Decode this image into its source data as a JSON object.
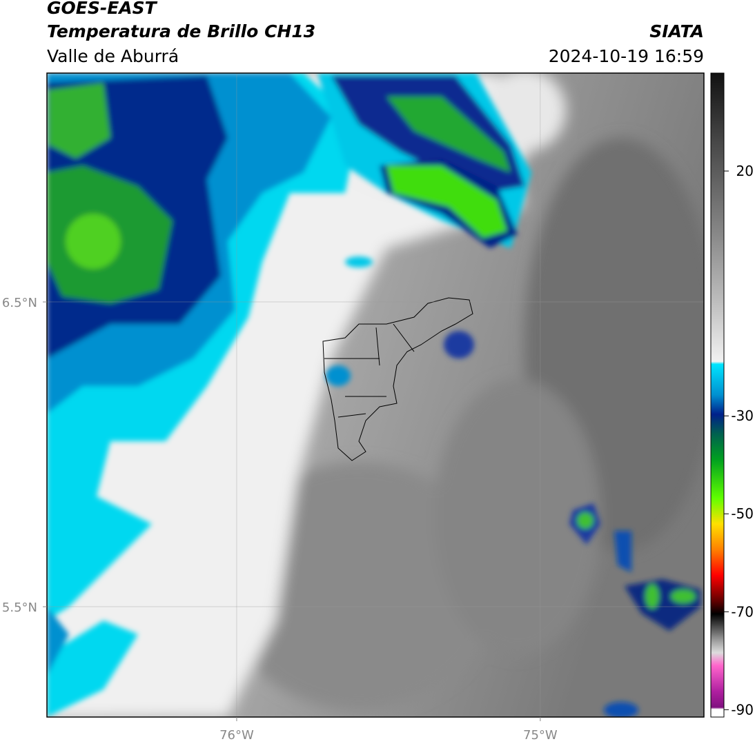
{
  "header": {
    "title": "GOES-EAST",
    "subtitle": "Temperatura de Brillo CH13",
    "region": "Valle de Aburrá",
    "source": "SIATA",
    "datetime": "2024-10-19 16:59"
  },
  "map": {
    "xlim": [
      -76.625,
      -74.461
    ],
    "ylim": [
      5.138,
      7.251
    ],
    "xticks": [
      {
        "value": -76,
        "label": "76°W"
      },
      {
        "value": -75,
        "label": "75°W"
      }
    ],
    "yticks": [
      {
        "value": 6.5,
        "label": "6.5°N"
      },
      {
        "value": 5.5,
        "label": "5.5°N"
      }
    ],
    "grid": true
  },
  "colorbar": {
    "lim": [
      -91.5,
      40
    ],
    "ticks": [
      20,
      -30,
      -50,
      -70,
      -90
    ]
  }
}
